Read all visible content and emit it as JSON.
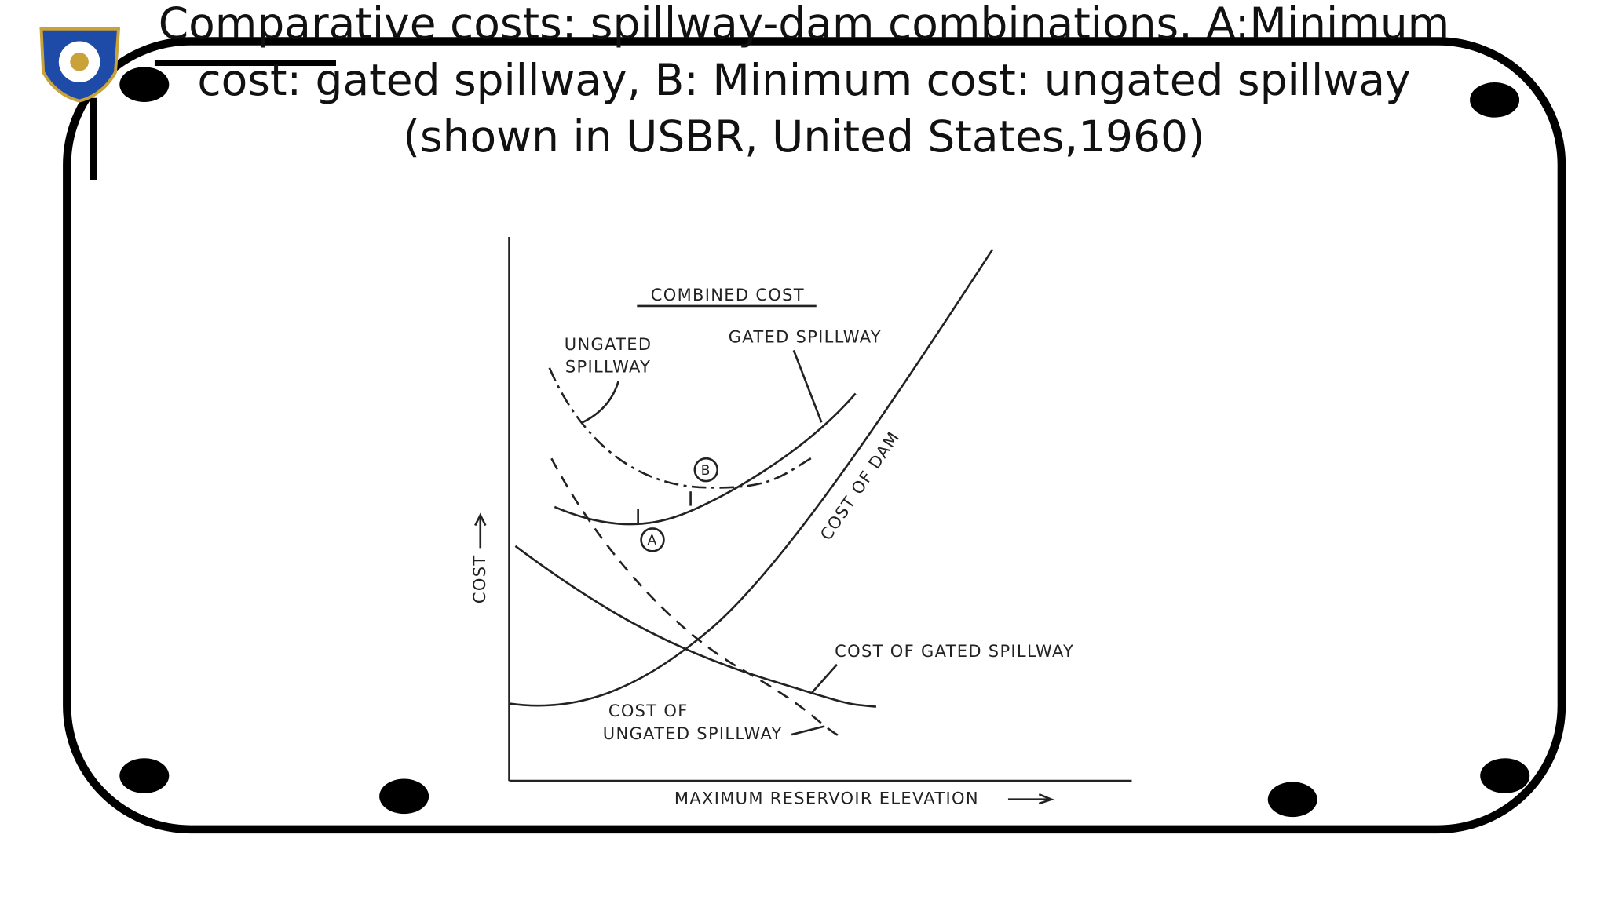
{
  "slide": {
    "title": "Comparative costs: spillway-dam combinations. A:Minimum cost: gated spillway, B: Minimum cost: ungated spillway (shown in USBR, United States,1960)",
    "figure": {
      "combined_cost": "COMBINED COST",
      "ungated_spillway": [
        "UNGATED",
        "SPILLWAY"
      ],
      "gated_spillway": "GATED SPILLWAY",
      "cost_of_dam": "COST OF DAM",
      "cost_of_gated_spillway": "COST OF GATED SPILLWAY",
      "cost_of_ungated_spillway": [
        "COST OF",
        "UNGATED SPILLWAY"
      ],
      "point_a": "A",
      "point_b": "B",
      "y_label": "COST",
      "x_label": "MAXIMUM RESERVOIR ELEVATION"
    }
  }
}
